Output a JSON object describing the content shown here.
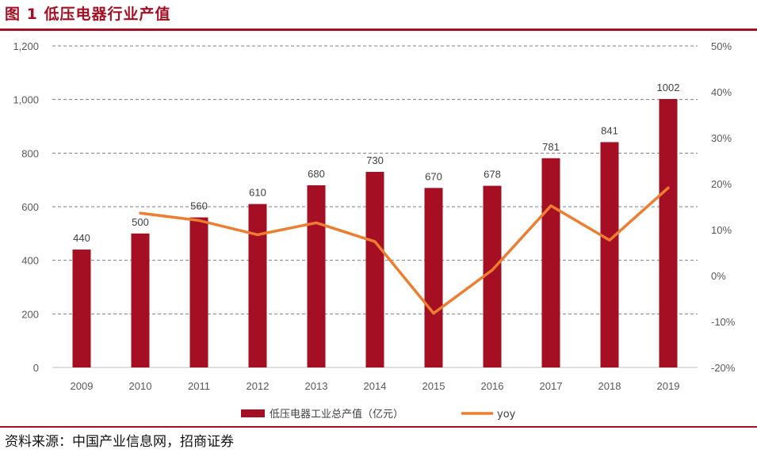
{
  "figure": {
    "title": "图 1  低压电器行业产值",
    "source": "资料来源：中国产业信息网，招商证券"
  },
  "chart_data": {
    "type": "bar",
    "title": "低压电器行业产值",
    "categories": [
      "2009",
      "2010",
      "2011",
      "2012",
      "2013",
      "2014",
      "2015",
      "2016",
      "2017",
      "2018",
      "2019"
    ],
    "series": [
      {
        "name": "低压电器工业总产值（亿元）",
        "type": "bar",
        "axis": "left",
        "color": "#a50f23",
        "values": [
          440,
          500,
          560,
          610,
          680,
          730,
          670,
          678,
          781,
          841,
          1002
        ]
      },
      {
        "name": "yoy",
        "type": "line",
        "axis": "right",
        "color": "#ed7d31",
        "values": [
          null,
          13.6,
          12.0,
          8.9,
          11.5,
          7.4,
          -8.2,
          1.2,
          15.2,
          7.7,
          19.1
        ]
      }
    ],
    "y_left": {
      "min": 0,
      "max": 1200,
      "ticks": [
        "0",
        "200",
        "400",
        "600",
        "800",
        "1,000",
        "1,200"
      ]
    },
    "y_right": {
      "min": -20,
      "max": 50,
      "ticks": [
        "-20%",
        "-10%",
        "0%",
        "10%",
        "20%",
        "30%",
        "40%",
        "50%"
      ]
    },
    "grid": "dashed horizontal",
    "legend_position": "bottom"
  },
  "colors": {
    "accent": "#a50f23",
    "line": "#ed7d31"
  }
}
